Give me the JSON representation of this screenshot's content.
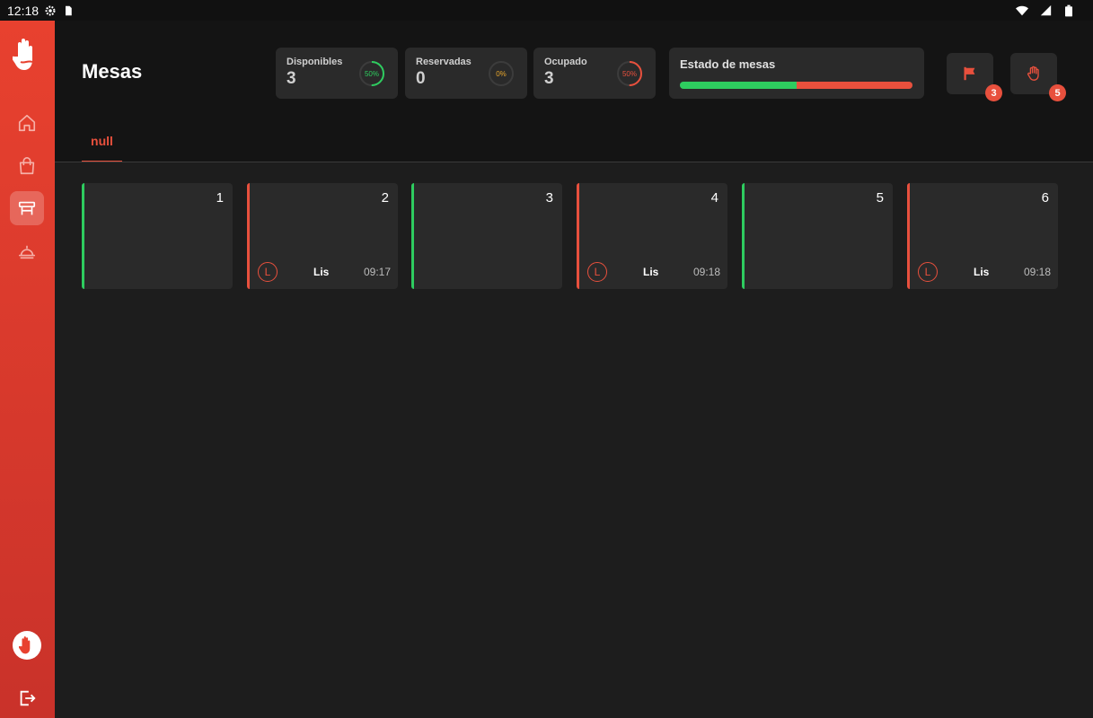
{
  "statusbar": {
    "time": "12:18"
  },
  "sidebar": {
    "items": [
      {
        "icon": "home-icon"
      },
      {
        "icon": "shopping-bag-icon"
      },
      {
        "icon": "table-icon"
      },
      {
        "icon": "cloche-icon"
      }
    ],
    "active_index": 2
  },
  "header": {
    "title": "Mesas",
    "stats": [
      {
        "label": "Disponibles",
        "value": "3",
        "percent_label": "50%",
        "percent": 50,
        "color": "#2ecc5f"
      },
      {
        "label": "Reservadas",
        "value": "0",
        "percent_label": "0%",
        "percent": 0,
        "color": "#e6a52b"
      },
      {
        "label": "Ocupado",
        "value": "3",
        "percent_label": "50%",
        "percent": 50,
        "color": "#e8503d"
      }
    ],
    "estado": {
      "label": "Estado de mesas",
      "free_fraction": 0.5
    },
    "actions": [
      {
        "icon": "flag-icon",
        "badge": "3"
      },
      {
        "icon": "hand-icon",
        "badge": "5"
      }
    ],
    "tab": "null"
  },
  "colors": {
    "accent": "#e8503d",
    "free": "#2ecc5f",
    "reserved": "#e6a52b"
  },
  "tables": [
    {
      "number": "1",
      "status": "free"
    },
    {
      "number": "2",
      "status": "busy",
      "initial": "L",
      "name": "Lis",
      "time": "09:17"
    },
    {
      "number": "3",
      "status": "free"
    },
    {
      "number": "4",
      "status": "busy",
      "initial": "L",
      "name": "Lis",
      "time": "09:18"
    },
    {
      "number": "5",
      "status": "free"
    },
    {
      "number": "6",
      "status": "busy",
      "initial": "L",
      "name": "Lis",
      "time": "09:18"
    }
  ]
}
